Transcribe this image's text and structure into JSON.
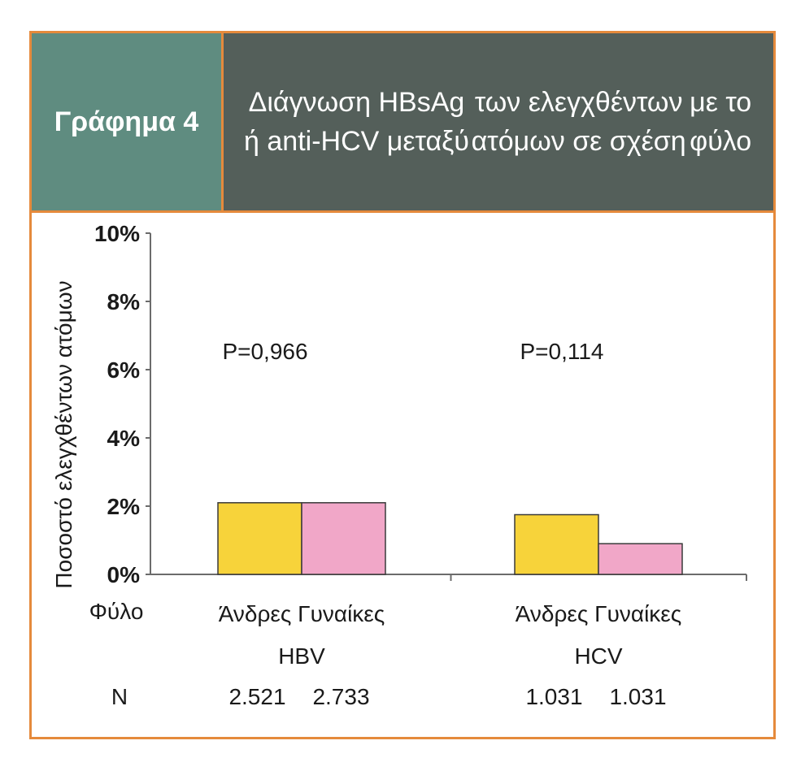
{
  "header": {
    "label": "Γράφημα 4",
    "title_lines": [
      "Διάγνωση HBsAg ή anti-HCV μεταξύ",
      "των ελεγχθέντων ατόμων σε σχέση",
      "με το φύλο"
    ]
  },
  "chart_data": {
    "type": "bar",
    "ylabel": "Ποσοστό ελεγχθέντων ατόμων",
    "ylim": [
      0,
      10
    ],
    "yticks": [
      "0%",
      "2%",
      "4%",
      "6%",
      "8%",
      "10%"
    ],
    "row_label_sex": "Φύλο",
    "row_label_n": "N",
    "groups": [
      {
        "name": "HBV",
        "p_value": "P=0,966",
        "bars": [
          {
            "label": "Άνδρες",
            "value": 2.1,
            "n": "2.521",
            "color": "#f7d33a"
          },
          {
            "label": "Γυναίκες",
            "value": 2.1,
            "n": "2.733",
            "color": "#f1a7c8"
          }
        ]
      },
      {
        "name": "HCV",
        "p_value": "P=0,114",
        "bars": [
          {
            "label": "Άνδρες",
            "value": 1.75,
            "n": "1.031",
            "color": "#f7d33a"
          },
          {
            "label": "Γυναίκες",
            "value": 0.9,
            "n": "1.031",
            "color": "#f1a7c8"
          }
        ]
      }
    ],
    "grid": false,
    "legend": "none"
  },
  "colors": {
    "border": "#e58a3c",
    "label_bg": "#5f8c80",
    "title_bg": "#545f5a"
  }
}
